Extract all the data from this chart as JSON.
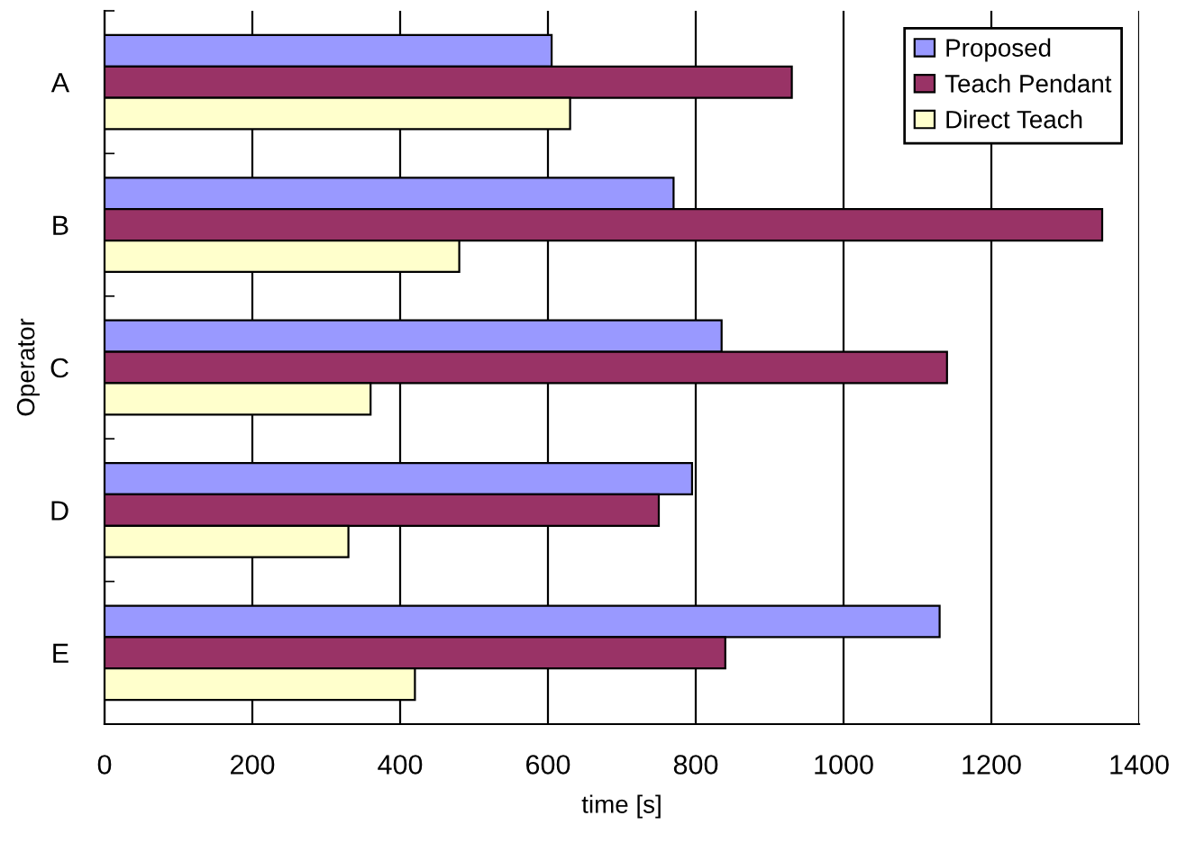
{
  "chart_data": {
    "type": "bar",
    "orientation": "horizontal",
    "xlabel": "time [s]",
    "ylabel": "Operator",
    "categories": [
      "A",
      "B",
      "C",
      "D",
      "E"
    ],
    "series": [
      {
        "name": "Proposed",
        "color": "#9999ff",
        "values": [
          605,
          770,
          835,
          795,
          1130
        ]
      },
      {
        "name": "Teach Pendant",
        "color": "#993366",
        "values": [
          930,
          1350,
          1140,
          750,
          840
        ]
      },
      {
        "name": "Direct Teach",
        "color": "#ffffcc",
        "values": [
          630,
          480,
          360,
          330,
          420
        ]
      }
    ],
    "xlim": [
      0,
      1400
    ],
    "xticks": [
      0,
      200,
      400,
      600,
      800,
      1000,
      1200,
      1400
    ],
    "grid": "x",
    "legend": "top right"
  }
}
